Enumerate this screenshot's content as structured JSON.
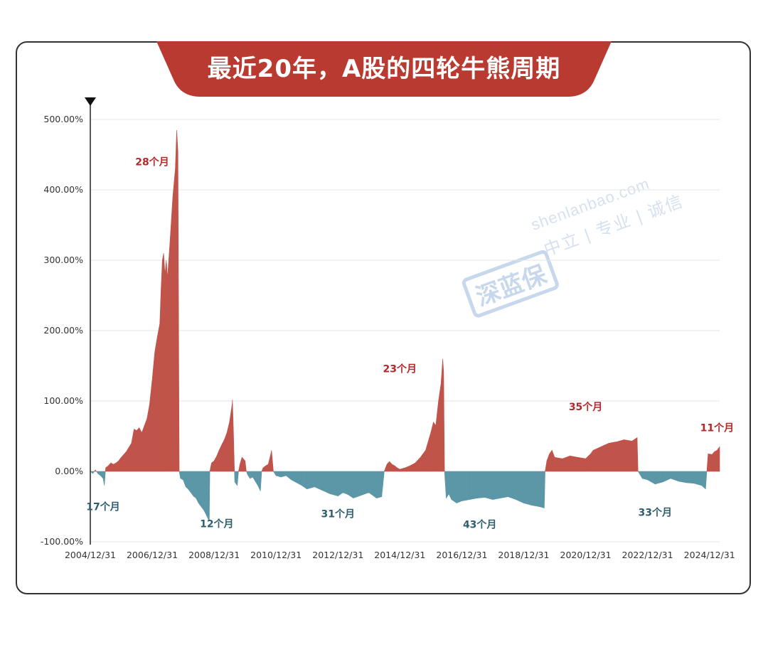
{
  "title": "最近20年，A股的四轮牛熊周期",
  "watermark": {
    "logo": "深蓝保",
    "site": "shenlanbao.com",
    "slogan": "中立 | 专业 | 诚信"
  },
  "colors": {
    "bull": "#c0544a",
    "bear": "#5b97a6",
    "bull_label": "#b5282a",
    "bear_label": "#2f5f6e",
    "title_bg": "#b93a30",
    "axis": "#222222",
    "grid": "#e6e6e6"
  },
  "chart_data": {
    "type": "area",
    "title": "",
    "xlabel": "",
    "ylabel": "",
    "ylim": [
      -100,
      500
    ],
    "xlim": [
      "2004-12-31",
      "2025-04-30"
    ],
    "y_ticks": [
      -100,
      0,
      100,
      200,
      300,
      400,
      500
    ],
    "y_tick_labels": [
      "-100.00%",
      "0.00%",
      "100.00%",
      "200.00%",
      "300.00%",
      "400.00%",
      "500.00%"
    ],
    "x_tick_dates": [
      "2004-12-31",
      "2006-12-31",
      "2008-12-31",
      "2010-12-31",
      "2012-12-31",
      "2014-12-31",
      "2016-12-31",
      "2018-12-31",
      "2020-12-31",
      "2022-12-31",
      "2024-12-31"
    ],
    "x_tick_labels": [
      "2004/12/31",
      "2006/12/31",
      "2008/12/31",
      "2010/12/31",
      "2012/12/31",
      "2014/12/31",
      "2016/12/31",
      "2018/12/31",
      "2020/12/31",
      "2022/12/31",
      "2024/12/31"
    ],
    "grid": true,
    "series": [
      {
        "values": [
          [
            "2004-12-31",
            0
          ],
          [
            "2005-01-31",
            -3
          ],
          [
            "2005-02-28",
            2
          ],
          [
            "2005-03-31",
            -3
          ],
          [
            "2005-04-30",
            -6
          ],
          [
            "2005-05-31",
            -10
          ],
          [
            "2005-06-15",
            -20
          ],
          [
            "2005-06-30",
            5
          ],
          [
            "2005-07-31",
            8
          ],
          [
            "2005-08-31",
            12
          ],
          [
            "2005-09-30",
            10
          ],
          [
            "2005-10-31",
            12
          ],
          [
            "2005-11-30",
            15
          ],
          [
            "2005-12-31",
            20
          ],
          [
            "2006-02-28",
            28
          ],
          [
            "2006-04-30",
            40
          ],
          [
            "2006-05-31",
            60
          ],
          [
            "2006-06-30",
            58
          ],
          [
            "2006-07-31",
            62
          ],
          [
            "2006-08-31",
            55
          ],
          [
            "2006-09-30",
            65
          ],
          [
            "2006-10-31",
            75
          ],
          [
            "2006-11-30",
            95
          ],
          [
            "2006-12-31",
            130
          ],
          [
            "2007-01-31",
            170
          ],
          [
            "2007-02-28",
            190
          ],
          [
            "2007-03-31",
            210
          ],
          [
            "2007-04-15",
            260
          ],
          [
            "2007-04-30",
            300
          ],
          [
            "2007-05-15",
            310
          ],
          [
            "2007-05-31",
            280
          ],
          [
            "2007-06-15",
            300
          ],
          [
            "2007-06-30",
            275
          ],
          [
            "2007-07-31",
            330
          ],
          [
            "2007-08-31",
            390
          ],
          [
            "2007-09-30",
            430
          ],
          [
            "2007-10-16",
            485
          ],
          [
            "2007-10-31",
            455
          ],
          [
            "2007-11-15",
            0
          ],
          [
            "2007-11-30",
            -10
          ],
          [
            "2007-12-31",
            -12
          ],
          [
            "2008-01-31",
            -22
          ],
          [
            "2008-02-28",
            -25
          ],
          [
            "2008-03-31",
            -30
          ],
          [
            "2008-04-30",
            -35
          ],
          [
            "2008-05-31",
            -38
          ],
          [
            "2008-06-30",
            -45
          ],
          [
            "2008-07-31",
            -50
          ],
          [
            "2008-08-31",
            -55
          ],
          [
            "2008-09-30",
            -62
          ],
          [
            "2008-10-31",
            -70
          ],
          [
            "2008-11-04",
            -70
          ],
          [
            "2008-11-10",
            0
          ],
          [
            "2008-11-30",
            12
          ],
          [
            "2008-12-31",
            15
          ],
          [
            "2009-01-31",
            22
          ],
          [
            "2009-02-28",
            30
          ],
          [
            "2009-03-31",
            38
          ],
          [
            "2009-04-30",
            45
          ],
          [
            "2009-05-31",
            55
          ],
          [
            "2009-06-30",
            70
          ],
          [
            "2009-07-31",
            95
          ],
          [
            "2009-08-04",
            102
          ],
          [
            "2009-08-15",
            60
          ],
          [
            "2009-08-31",
            -15
          ],
          [
            "2009-09-30",
            -20
          ],
          [
            "2009-10-15",
            0
          ],
          [
            "2009-10-31",
            10
          ],
          [
            "2009-11-24",
            20
          ],
          [
            "2009-12-31",
            15
          ],
          [
            "2010-01-15",
            0
          ],
          [
            "2010-01-31",
            -5
          ],
          [
            "2010-02-28",
            -10
          ],
          [
            "2010-03-31",
            -8
          ],
          [
            "2010-04-30",
            -14
          ],
          [
            "2010-05-31",
            -20
          ],
          [
            "2010-06-30",
            -28
          ],
          [
            "2010-07-15",
            0
          ],
          [
            "2010-07-31",
            5
          ],
          [
            "2010-08-31",
            8
          ],
          [
            "2010-09-30",
            10
          ],
          [
            "2010-10-31",
            25
          ],
          [
            "2010-11-08",
            30
          ],
          [
            "2010-11-30",
            0
          ],
          [
            "2010-12-31",
            -6
          ],
          [
            "2011-02-28",
            -8
          ],
          [
            "2011-04-30",
            -6
          ],
          [
            "2011-06-30",
            -12
          ],
          [
            "2011-08-31",
            -16
          ],
          [
            "2011-10-31",
            -20
          ],
          [
            "2011-12-31",
            -25
          ],
          [
            "2012-03-31",
            -22
          ],
          [
            "2012-06-30",
            -27
          ],
          [
            "2012-09-30",
            -32
          ],
          [
            "2012-12-31",
            -35
          ],
          [
            "2013-02-28",
            -30
          ],
          [
            "2013-04-30",
            -33
          ],
          [
            "2013-06-30",
            -38
          ],
          [
            "2013-09-30",
            -34
          ],
          [
            "2013-12-31",
            -30
          ],
          [
            "2014-03-31",
            -38
          ],
          [
            "2014-05-31",
            -36
          ],
          [
            "2014-06-30",
            0
          ],
          [
            "2014-07-31",
            10
          ],
          [
            "2014-08-31",
            14
          ],
          [
            "2014-09-30",
            10
          ],
          [
            "2014-10-31",
            8
          ],
          [
            "2014-11-30",
            5
          ],
          [
            "2014-12-31",
            3
          ],
          [
            "2015-02-28",
            5
          ],
          [
            "2015-04-30",
            8
          ],
          [
            "2015-06-30",
            12
          ],
          [
            "2015-08-31",
            20
          ],
          [
            "2015-10-31",
            30
          ],
          [
            "2015-12-31",
            55
          ],
          [
            "2016-01-31",
            70
          ],
          [
            "2016-02-28",
            65
          ],
          [
            "2016-03-31",
            100
          ],
          [
            "2016-04-30",
            125
          ],
          [
            "2016-05-20",
            160
          ],
          [
            "2016-05-31",
            140
          ],
          [
            "2016-06-10",
            0
          ],
          [
            "2016-06-30",
            -38
          ],
          [
            "2016-07-31",
            -32
          ],
          [
            "2016-08-31",
            -40
          ],
          [
            "2016-10-31",
            -45
          ],
          [
            "2016-12-31",
            -42
          ],
          [
            "2017-03-31",
            -40
          ],
          [
            "2017-06-30",
            -38
          ],
          [
            "2017-09-30",
            -37
          ],
          [
            "2017-12-31",
            -40
          ],
          [
            "2018-03-31",
            -38
          ],
          [
            "2018-06-30",
            -36
          ],
          [
            "2018-09-30",
            -40
          ],
          [
            "2018-12-31",
            -45
          ],
          [
            "2019-03-31",
            -48
          ],
          [
            "2019-06-30",
            -50
          ],
          [
            "2019-08-31",
            -52
          ],
          [
            "2019-09-10",
            0
          ],
          [
            "2019-09-30",
            15
          ],
          [
            "2019-10-31",
            25
          ],
          [
            "2019-11-30",
            30
          ],
          [
            "2019-12-31",
            20
          ],
          [
            "2020-03-31",
            18
          ],
          [
            "2020-06-30",
            22
          ],
          [
            "2020-09-30",
            20
          ],
          [
            "2020-12-31",
            18
          ],
          [
            "2021-02-28",
            25
          ],
          [
            "2021-03-31",
            30
          ],
          [
            "2021-06-30",
            35
          ],
          [
            "2021-09-30",
            40
          ],
          [
            "2021-12-31",
            42
          ],
          [
            "2022-03-31",
            45
          ],
          [
            "2022-06-30",
            43
          ],
          [
            "2022-08-31",
            48
          ],
          [
            "2022-09-10",
            0
          ],
          [
            "2022-10-31",
            -10
          ],
          [
            "2022-12-31",
            -12
          ],
          [
            "2023-03-31",
            -18
          ],
          [
            "2023-06-30",
            -15
          ],
          [
            "2023-09-30",
            -10
          ],
          [
            "2023-12-31",
            -14
          ],
          [
            "2024-03-31",
            -16
          ],
          [
            "2024-06-30",
            -17
          ],
          [
            "2024-09-30",
            -20
          ],
          [
            "2024-11-15",
            -25
          ],
          [
            "2024-11-30",
            0
          ],
          [
            "2024-12-15",
            25
          ],
          [
            "2025-01-31",
            24
          ],
          [
            "2025-02-28",
            28
          ],
          [
            "2025-03-31",
            30
          ],
          [
            "2025-04-30",
            35
          ]
        ]
      }
    ],
    "annotations": [
      {
        "text": "17个月",
        "date": "2005-05-31",
        "value": -50,
        "kind": "bear"
      },
      {
        "text": "28个月",
        "date": "2006-12-31",
        "value": 440,
        "kind": "bull"
      },
      {
        "text": "12个月",
        "date": "2009-01-31",
        "value": -74,
        "kind": "bear"
      },
      {
        "text": "31个月",
        "date": "2012-12-31",
        "value": -60,
        "kind": "bear"
      },
      {
        "text": "23个月",
        "date": "2014-12-31",
        "value": 146,
        "kind": "bull"
      },
      {
        "text": "43个月",
        "date": "2017-07-31",
        "value": -75,
        "kind": "bear"
      },
      {
        "text": "35个月",
        "date": "2020-12-31",
        "value": 92,
        "kind": "bull"
      },
      {
        "text": "33个月",
        "date": "2023-03-31",
        "value": -58,
        "kind": "bear"
      },
      {
        "text": "11个月",
        "date": "2025-03-31",
        "value": 62,
        "kind": "bull"
      }
    ]
  }
}
